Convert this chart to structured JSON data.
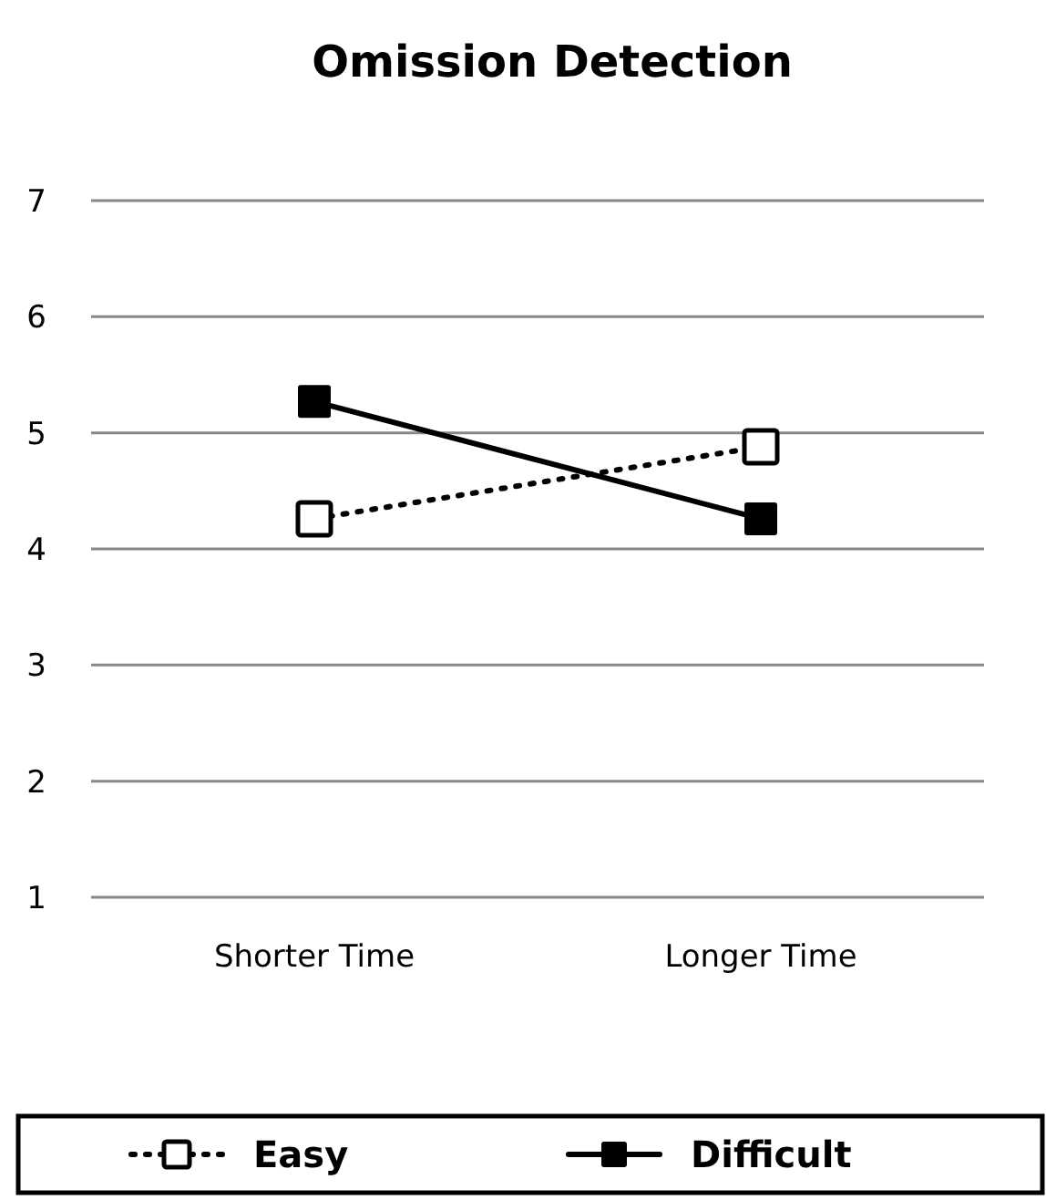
{
  "chart_data": {
    "type": "line",
    "title": "Omission Detection",
    "categories": [
      "Shorter Time",
      "Longer Time"
    ],
    "series": [
      {
        "name": "Easy",
        "color": "#000000",
        "values": [
          4.26,
          4.88
        ],
        "line_style": "dotted",
        "marker": "square"
      },
      {
        "name": "Difficult",
        "color": "#000000",
        "values": [
          5.27,
          4.26
        ],
        "line_style": "solid",
        "marker": "square"
      }
    ],
    "ylim": [
      1,
      7
    ],
    "yticks": [
      1,
      2,
      3,
      4,
      5,
      6,
      7
    ],
    "grid": "y",
    "legend": "bottom"
  }
}
